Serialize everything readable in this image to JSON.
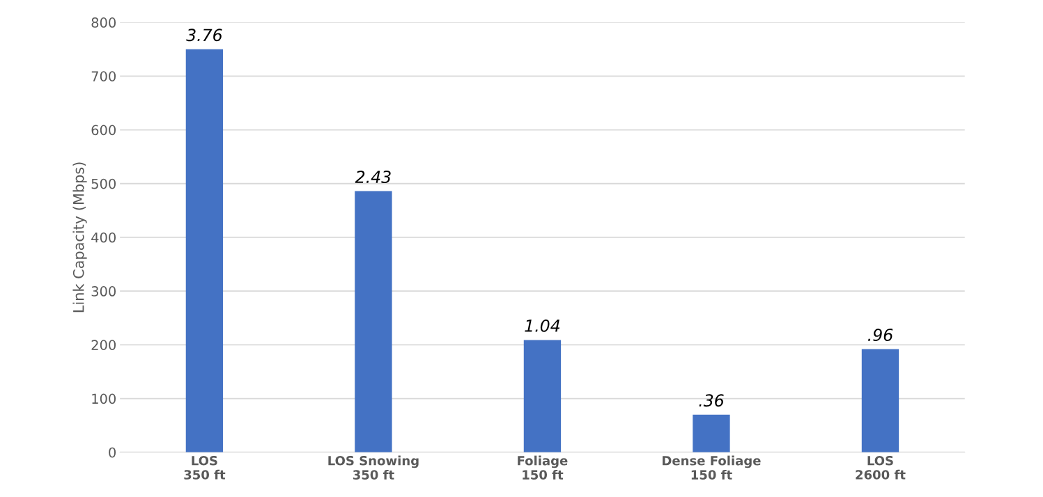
{
  "chart_data": {
    "type": "bar",
    "ylabel": "Link Capacity (Mbps)",
    "categories": [
      "LOS\n350 ft",
      "LOS Snowing\n350 ft",
      "Foliage\n150 ft",
      "Dense Foliage\n150 ft",
      "LOS\n2600 ft"
    ],
    "values": [
      750,
      486,
      209,
      70,
      192
    ],
    "annotations": [
      {
        "text": "3.76",
        "x": "LOS\n350 ft",
        "y": 750
      },
      {
        "text": "2.43",
        "x": "LOS Snowing\n350 ft",
        "y": 486
      },
      {
        "text": "1.04",
        "x": "Foliage\n150 ft",
        "y": 209
      },
      {
        "text": ".36",
        "x": "Dense Foliage\n150 ft",
        "y": 70
      },
      {
        "text": ".96",
        "x": "LOS\n2600 ft",
        "y": 192
      }
    ],
    "color": "#4472c4",
    "ylim": [
      0,
      800
    ],
    "yticks": [
      0,
      100,
      200,
      300,
      400,
      500,
      600,
      700,
      800
    ],
    "grid": "y"
  }
}
